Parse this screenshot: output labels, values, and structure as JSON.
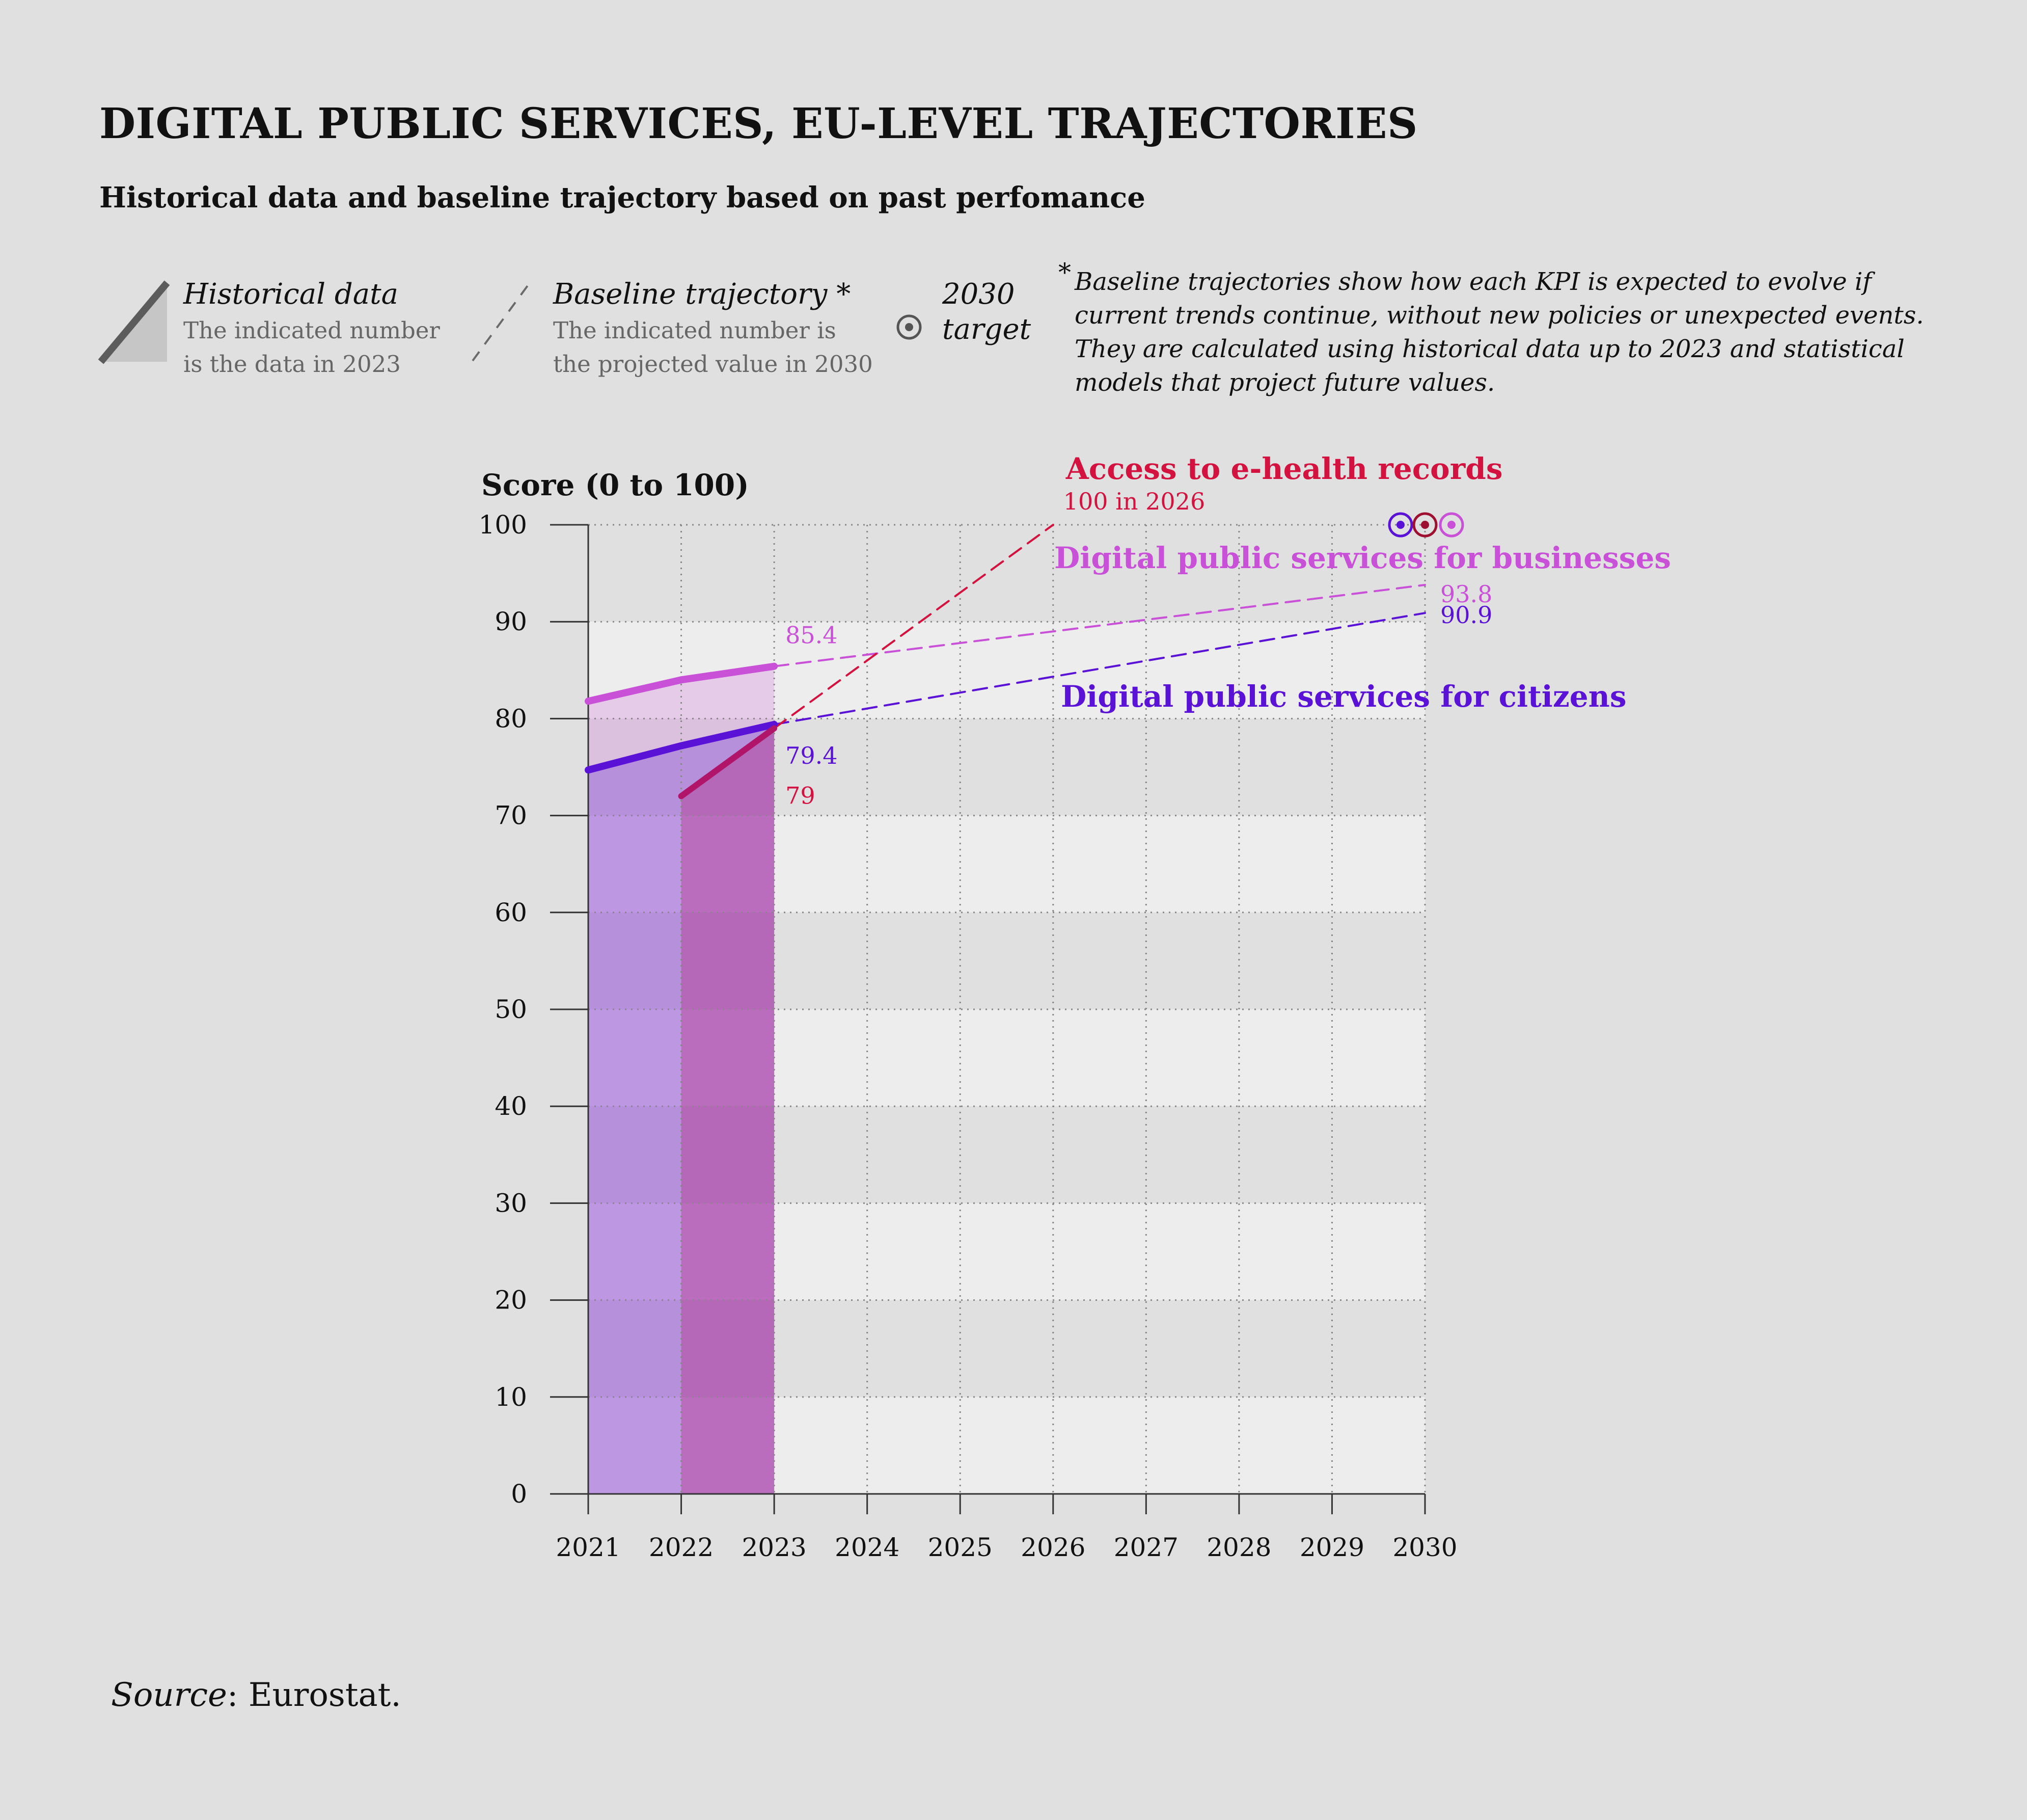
{
  "title": "DIGITAL PUBLIC SERVICES, EU-LEVEL TRAJECTORIES",
  "subtitle": "Historical data and baseline trajectory based on past perfomance",
  "legend": {
    "historical_name": "Historical data",
    "historical_desc1": "The indicated number",
    "historical_desc2": "is the data in 2023",
    "baseline_name": "Baseline trajectory *",
    "baseline_desc1": "The indicated number is",
    "baseline_desc2": "the projected value in 2030",
    "target_name1": "2030",
    "target_name2": "target"
  },
  "note": {
    "star": "*",
    "text": "Baseline trajectories show how each KPI is expected to evolve if current trends continue, without new policies or unexpected events. They are calculated using historical data up to 2023 and statistical models that project future values."
  },
  "source": {
    "label": "Source",
    "text": ": Eurostat."
  },
  "colors": {
    "citizens": "#5a12d6",
    "businesses": "#c851d8",
    "ehealth": "#d3123f",
    "ehealth_hist": "#b0156a",
    "background": "#e0e0e0",
    "band": "#ededed"
  },
  "chart_data": {
    "type": "line",
    "ylabel": "Score (0 to 100)",
    "xlabel": "",
    "ylim": [
      0,
      100
    ],
    "yticks": [
      0,
      10,
      20,
      30,
      40,
      50,
      60,
      70,
      80,
      90,
      100
    ],
    "x": [
      2021,
      2022,
      2023,
      2024,
      2025,
      2026,
      2027,
      2028,
      2029,
      2030
    ],
    "series": [
      {
        "key": "citizens",
        "name": "Digital public services for citizens",
        "historical": [
          [
            2021,
            74.7
          ],
          [
            2022,
            77.2
          ],
          [
            2023,
            79.4
          ]
        ],
        "baseline": [
          [
            2023,
            79.4
          ],
          [
            2030,
            90.9
          ]
        ],
        "hist_label": "79.4",
        "proj_label": "90.9",
        "target": 100
      },
      {
        "key": "businesses",
        "name": "Digital public services for businesses",
        "historical": [
          [
            2021,
            81.8
          ],
          [
            2022,
            84.0
          ],
          [
            2023,
            85.4
          ]
        ],
        "baseline": [
          [
            2023,
            85.4
          ],
          [
            2030,
            93.8
          ]
        ],
        "hist_label": "85.4",
        "proj_label": "93.8",
        "target": 100
      },
      {
        "key": "ehealth",
        "name": "Access to e-health records",
        "historical": [
          [
            2022,
            72.0
          ],
          [
            2023,
            79.0
          ]
        ],
        "baseline": [
          [
            2023,
            79.0
          ],
          [
            2026,
            100
          ]
        ],
        "hist_label": "79",
        "proj_label": "100 in 2026",
        "target": 100
      }
    ]
  }
}
